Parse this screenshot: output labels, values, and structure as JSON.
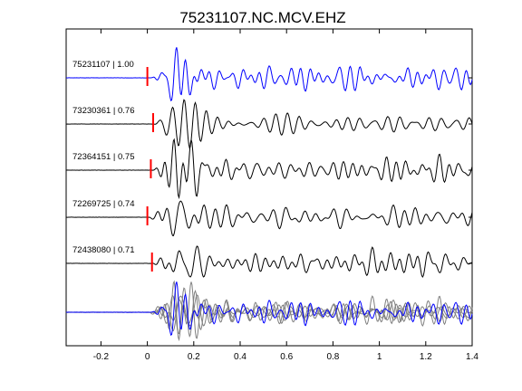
{
  "chart_data": {
    "type": "line",
    "title": "75231107.NC.MCV.EHZ",
    "xlabel": "",
    "ylabel": "",
    "xlim": [
      -0.35,
      1.4
    ],
    "x_ticks": [
      -0.2,
      0,
      0.2,
      0.4,
      0.6,
      0.8,
      1,
      1.2,
      1.4
    ],
    "x_tick_labels": [
      "-0.2",
      "0",
      "0.2",
      "0.4",
      "0.6",
      "0.8",
      "1",
      "1.2",
      "1.4"
    ],
    "grid": false,
    "legend": "none",
    "pick_marker_color": "#ff0000",
    "stack_colors": [
      "#0000ff",
      "#808080"
    ],
    "traces": [
      {
        "label": "75231107 | 1.00",
        "color": "#0000ff",
        "pick_time": 0.0,
        "onset": 0.02,
        "seed": 1
      },
      {
        "label": "73230361 | 0.76",
        "color": "#000000",
        "pick_time": 0.025,
        "onset": 0.03,
        "seed": 2
      },
      {
        "label": "72364151 | 0.75",
        "color": "#000000",
        "pick_time": 0.015,
        "onset": 0.02,
        "seed": 3
      },
      {
        "label": "72269725 | 0.74",
        "color": "#000000",
        "pick_time": 0.0,
        "onset": 0.01,
        "seed": 4
      },
      {
        "label": "72438080 | 0.71",
        "color": "#000000",
        "pick_time": 0.02,
        "onset": 0.02,
        "seed": 5
      }
    ]
  }
}
